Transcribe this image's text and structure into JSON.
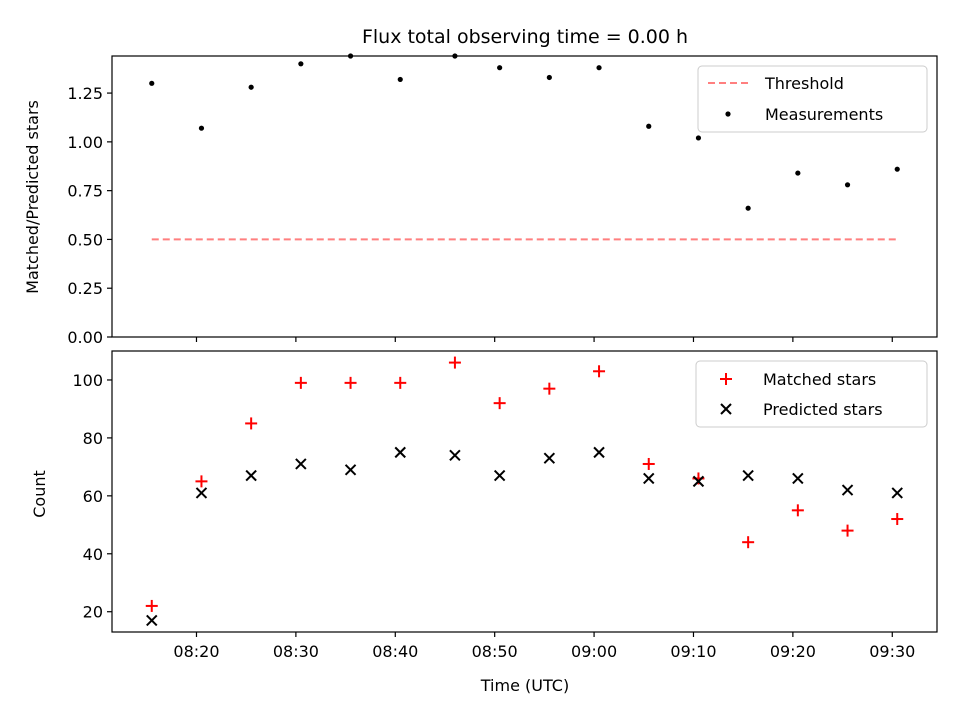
{
  "chart_data": [
    {
      "type": "scatter",
      "title": "Flux total observing time = 0.00 h",
      "ylabel": "Matched/Predicted stars",
      "xlabel": "",
      "ylim": [
        0,
        1.44
      ],
      "yticks": [
        "0.00",
        "0.25",
        "0.50",
        "0.75",
        "1.00",
        "1.25"
      ],
      "grid": false,
      "legend_position": "top-right",
      "threshold": {
        "name": "Threshold",
        "value": 0.5,
        "x_start": "08:15:30",
        "x_end": "09:30:30",
        "color": "#ff7f7f",
        "style": "dashed"
      },
      "series": [
        {
          "name": "Measurements",
          "color": "#000000",
          "marker": "dot",
          "x": [
            "08:15:30",
            "08:20:30",
            "08:25:30",
            "08:30:30",
            "08:35:30",
            "08:40:30",
            "08:46:00",
            "08:50:30",
            "08:55:30",
            "09:00:30",
            "09:05:30",
            "09:10:30",
            "09:15:30",
            "09:20:30",
            "09:25:30",
            "09:30:30"
          ],
          "y": [
            1.3,
            1.07,
            1.28,
            1.4,
            1.44,
            1.32,
            1.44,
            1.38,
            1.33,
            1.38,
            1.08,
            1.02,
            0.66,
            0.84,
            0.78,
            0.86
          ]
        }
      ]
    },
    {
      "type": "scatter",
      "title": "",
      "xlabel": "Time (UTC)",
      "ylabel": "Count",
      "xlim": [
        "08:11:30",
        "09:34:30"
      ],
      "xticks": [
        "08:20",
        "08:30",
        "08:40",
        "08:50",
        "09:00",
        "09:10",
        "09:20",
        "09:30"
      ],
      "ylim": [
        13,
        110
      ],
      "yticks": [
        "20",
        "40",
        "60",
        "80",
        "100"
      ],
      "grid": false,
      "legend_position": "top-right",
      "series": [
        {
          "name": "Matched stars",
          "color": "#ff0000",
          "marker": "plus",
          "x": [
            "08:15:30",
            "08:20:30",
            "08:25:30",
            "08:30:30",
            "08:35:30",
            "08:40:30",
            "08:46:00",
            "08:50:30",
            "08:55:30",
            "09:00:30",
            "09:05:30",
            "09:10:30",
            "09:15:30",
            "09:20:30",
            "09:25:30",
            "09:30:30"
          ],
          "y": [
            22,
            65,
            85,
            99,
            99,
            99,
            106,
            92,
            97,
            103,
            71,
            66,
            44,
            55,
            48,
            52
          ]
        },
        {
          "name": "Predicted stars",
          "color": "#000000",
          "marker": "x",
          "x": [
            "08:15:30",
            "08:20:30",
            "08:25:30",
            "08:30:30",
            "08:35:30",
            "08:40:30",
            "08:46:00",
            "08:50:30",
            "08:55:30",
            "09:00:30",
            "09:05:30",
            "09:10:30",
            "09:15:30",
            "09:20:30",
            "09:25:30",
            "09:30:30"
          ],
          "y": [
            17,
            61,
            67,
            71,
            69,
            75,
            74,
            67,
            73,
            75,
            66,
            65,
            67,
            66,
            62,
            61
          ]
        }
      ]
    }
  ]
}
